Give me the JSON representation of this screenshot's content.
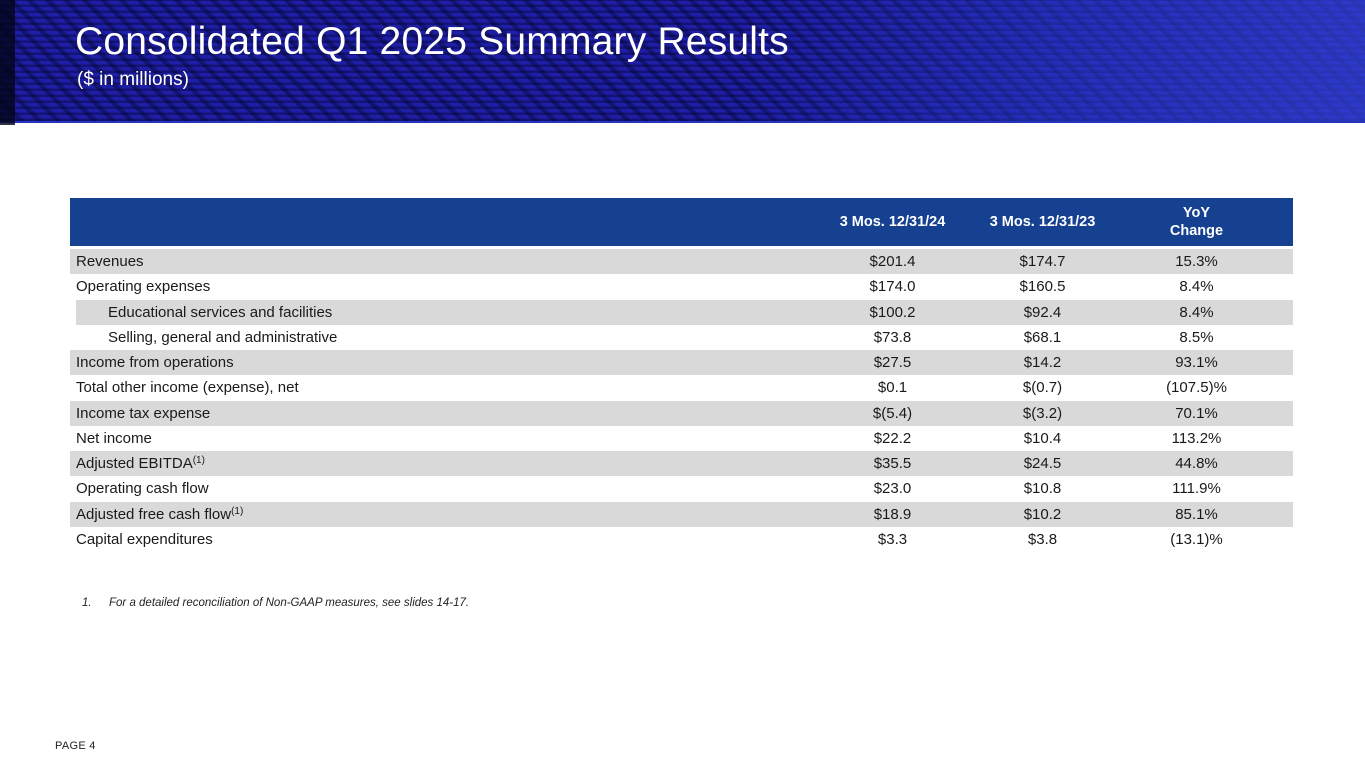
{
  "slide": {
    "title": "Consolidated Q1 2025 Summary Results",
    "subtitle": "($ in millions)",
    "page_label": "PAGE 4"
  },
  "footnote": {
    "number": "1.",
    "text": "For a detailed reconciliation of Non-GAAP measures, see slides 14-17."
  },
  "colors": {
    "banner_base": "#1a1a9e",
    "banner_edge": "#05051c",
    "banner_highlight": "#3344d6",
    "table_header_bg": "#164191",
    "row_stripe_bg": "#d9d9d9",
    "body_text": "#1a1a1a"
  },
  "table": {
    "header": {
      "col1": "3 Mos. 12/31/24",
      "col2": "3 Mos. 12/31/23",
      "col3": "YoY\nChange"
    },
    "rows": [
      {
        "label": "Revenues",
        "sup": "",
        "v1": "$201.4",
        "v2": "$174.7",
        "yoy": "15.3%"
      },
      {
        "label": "Operating expenses",
        "sup": "",
        "v1": "$174.0",
        "v2": "$160.5",
        "yoy": "8.4%"
      },
      {
        "label": "Educational services and facilities",
        "sup": "",
        "v1": "$100.2",
        "v2": "$92.4",
        "yoy": "8.4%"
      },
      {
        "label": "Selling, general and administrative",
        "sup": "",
        "v1": "$73.8",
        "v2": "$68.1",
        "yoy": "8.5%"
      },
      {
        "label": "Income from operations",
        "sup": "",
        "v1": "$27.5",
        "v2": "$14.2",
        "yoy": "93.1%"
      },
      {
        "label": "Total other income (expense), net",
        "sup": "",
        "v1": "$0.1",
        "v2": "$(0.7)",
        "yoy": "(107.5)%"
      },
      {
        "label": "Income tax expense",
        "sup": "",
        "v1": "$(5.4)",
        "v2": "$(3.2)",
        "yoy": "70.1%"
      },
      {
        "label": "Net income",
        "sup": "",
        "v1": "$22.2",
        "v2": "$10.4",
        "yoy": "113.2%"
      },
      {
        "label": "Adjusted EBITDA",
        "sup": "(1)",
        "v1": "$35.5",
        "v2": "$24.5",
        "yoy": "44.8%"
      },
      {
        "label": "Operating cash flow",
        "sup": "",
        "v1": "$23.0",
        "v2": "$10.8",
        "yoy": "111.9%"
      },
      {
        "label": "Adjusted free cash flow",
        "sup": "(1)",
        "v1": "$18.9",
        "v2": "$10.2",
        "yoy": "85.1%"
      },
      {
        "label": "Capital expenditures",
        "sup": "",
        "v1": "$3.3",
        "v2": "$3.8",
        "yoy": "(13.1)%"
      }
    ]
  }
}
